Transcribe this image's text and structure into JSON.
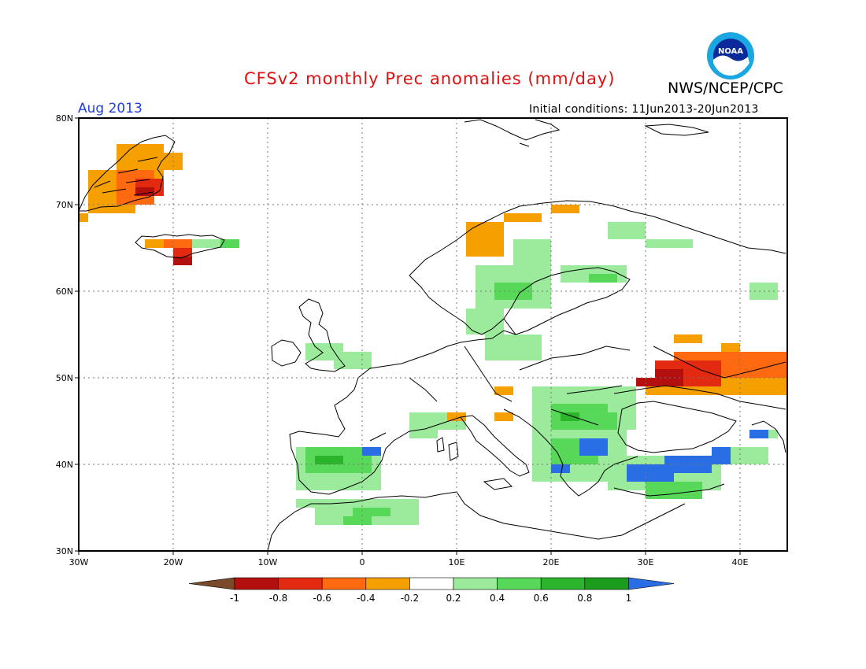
{
  "header": {
    "title": "CFSv2 monthly Prec anomalies (mm/day)",
    "agency": "NWS/NCEP/CPC",
    "month": "Aug 2013",
    "initial_conditions": "Initial conditions: 11Jun2013-20Jun2013",
    "logo_text": "NOAA"
  },
  "map": {
    "lat_range": [
      30,
      80
    ],
    "lon_range": [
      -30,
      45
    ],
    "lat_labels": [
      "80N",
      "70N",
      "60N",
      "50N",
      "40N",
      "30N"
    ],
    "lon_labels": [
      "30W",
      "20W",
      "10W",
      "0",
      "10E",
      "20E",
      "30E",
      "40E"
    ],
    "grid": true
  },
  "colorbar": {
    "labels": [
      "-1",
      "-0.8",
      "-0.6",
      "-0.4",
      "-0.2",
      "0.2",
      "0.4",
      "0.6",
      "0.8",
      "1"
    ],
    "colors": [
      "#7a4a2a",
      "#b40f0f",
      "#e22a10",
      "#ff6a10",
      "#f6a000",
      "#ffffff",
      "#9cea9c",
      "#58d858",
      "#2db42d",
      "#1c9c1c",
      "#2a6ee6"
    ]
  },
  "anomaly_regions": [
    {
      "region": "Greenland east coast",
      "category": "-0.4 to -0.2"
    },
    {
      "region": "Greenland east coast core",
      "category": "-0.8 to -0.6"
    },
    {
      "region": "Iceland south",
      "category": "-0.8 to -0.6"
    },
    {
      "region": "Norway coast",
      "category": "-0.4 to -0.2"
    },
    {
      "region": "Sweden / Finland",
      "category": "0.2 to 0.6"
    },
    {
      "region": "Iberia",
      "category": "0.2 to 0.8"
    },
    {
      "region": "Balkans / Carpathians",
      "category": "0.4 to 0.8"
    },
    {
      "region": "Greece",
      "category": "0.8 to 1"
    },
    {
      "region": "Anatolia",
      "category": "0.8 to 1"
    },
    {
      "region": "Ukraine / southern Russia",
      "category": "-0.8 to -0.2"
    },
    {
      "region": "North Africa",
      "category": "0.2 to 0.6"
    }
  ]
}
